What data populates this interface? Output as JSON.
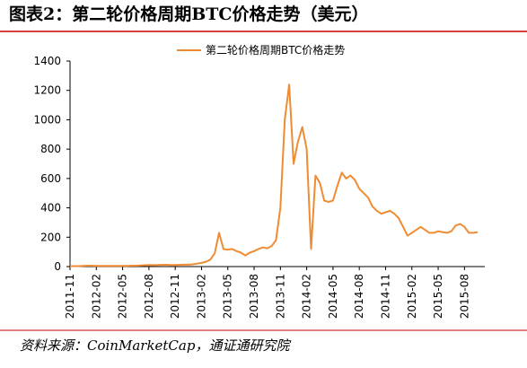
{
  "chart_data": {
    "type": "line",
    "title": "图表2：第二轮价格周期BTC价格走势（美元）",
    "source": "资料来源：CoinMarketCap，通证通研究院",
    "categories": [
      "2011-11",
      null,
      null,
      null,
      null,
      null,
      "2012-02",
      null,
      null,
      null,
      null,
      null,
      "2012-05",
      null,
      null,
      null,
      null,
      null,
      "2012-08",
      null,
      null,
      null,
      null,
      null,
      "2012-11",
      null,
      null,
      null,
      null,
      null,
      "2013-02",
      null,
      null,
      null,
      null,
      null,
      "2013-05",
      null,
      null,
      null,
      null,
      null,
      "2013-08",
      null,
      null,
      null,
      null,
      null,
      "2013-11",
      null,
      null,
      null,
      null,
      null,
      "2014-02",
      null,
      null,
      null,
      null,
      null,
      "2014-05",
      null,
      null,
      null,
      null,
      null,
      "2014-08",
      null,
      null,
      null,
      null,
      null,
      "2014-11",
      null,
      null,
      null,
      null,
      null,
      "2015-02",
      null,
      null,
      null,
      null,
      null,
      "2015-05",
      null,
      null,
      null,
      null,
      null,
      "2015-08",
      null,
      null,
      null
    ],
    "series": [
      {
        "name": "第二轮价格周期BTC价格走势",
        "color": "#ef8c33",
        "values": [
          3,
          3,
          3,
          4,
          6,
          6,
          5,
          5,
          5,
          5,
          5,
          5,
          5,
          5,
          6,
          6,
          8,
          9,
          11,
          10,
          11,
          12,
          12,
          11,
          11,
          12,
          13,
          13,
          15,
          20,
          25,
          33,
          47,
          90,
          230,
          120,
          115,
          120,
          105,
          95,
          75,
          95,
          105,
          120,
          130,
          125,
          140,
          180,
          400,
          1000,
          1240,
          700,
          850,
          950,
          800,
          120,
          620,
          570,
          450,
          440,
          450,
          550,
          640,
          600,
          620,
          590,
          530,
          500,
          470,
          410,
          380,
          360,
          370,
          380,
          360,
          330,
          270,
          210,
          230,
          250,
          270,
          250,
          230,
          230,
          240,
          235,
          230,
          240,
          280,
          290,
          270,
          230,
          230,
          235
        ]
      }
    ],
    "ylim": [
      0,
      1400
    ],
    "yticks": [
      0,
      200,
      400,
      600,
      800,
      1000,
      1200,
      1400
    ],
    "grid": false,
    "legend": "top"
  }
}
